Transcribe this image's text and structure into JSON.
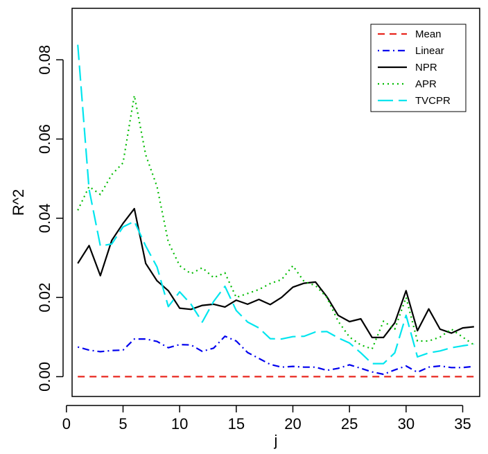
{
  "chart_data": {
    "type": "line",
    "title": "",
    "xlabel": "j",
    "ylabel": "R^2",
    "xlim": [
      0.5,
      36.5
    ],
    "ylim": [
      -0.005,
      0.093
    ],
    "x_ticks": [
      0,
      5,
      10,
      15,
      20,
      25,
      30,
      35
    ],
    "y_ticks": [
      0.0,
      0.02,
      0.04,
      0.06,
      0.08
    ],
    "y_tick_labels": [
      "0.00",
      "0.02",
      "0.04",
      "0.06",
      "0.08"
    ],
    "grid": false,
    "legend_position": "top-right",
    "x": [
      1,
      2,
      3,
      4,
      5,
      6,
      7,
      8,
      9,
      10,
      11,
      12,
      13,
      14,
      15,
      16,
      17,
      18,
      19,
      20,
      21,
      22,
      23,
      24,
      25,
      26,
      27,
      28,
      29,
      30,
      31,
      32,
      33,
      34,
      35,
      36
    ],
    "series": [
      {
        "name": "Mean",
        "color": "#e8261e",
        "dash": "dashed",
        "values": [
          0,
          0,
          0,
          0,
          0,
          0,
          0,
          0,
          0,
          0,
          0,
          0,
          0,
          0,
          0,
          0,
          0,
          0,
          0,
          0,
          0,
          0,
          0,
          0,
          0,
          0,
          0,
          0,
          0,
          0,
          0,
          0,
          0,
          0,
          0,
          0
        ]
      },
      {
        "name": "Linear",
        "color": "#0000ee",
        "dash": "dotdash",
        "values": [
          0.0075,
          0.0067,
          0.0063,
          0.0066,
          0.0067,
          0.0095,
          0.0095,
          0.0089,
          0.0073,
          0.0081,
          0.008,
          0.0064,
          0.0072,
          0.0102,
          0.009,
          0.0061,
          0.0046,
          0.0031,
          0.0024,
          0.0026,
          0.0024,
          0.0024,
          0.0016,
          0.0021,
          0.003,
          0.0021,
          0.0012,
          0.0006,
          0.0017,
          0.0027,
          0.0011,
          0.0024,
          0.0027,
          0.0023,
          0.0023,
          0.0026
        ]
      },
      {
        "name": "NPR",
        "color": "#000000",
        "dash": "solid",
        "values": [
          0.0286,
          0.0331,
          0.0255,
          0.0344,
          0.0387,
          0.0424,
          0.0286,
          0.0242,
          0.0217,
          0.0173,
          0.017,
          0.018,
          0.0183,
          0.0176,
          0.0193,
          0.0183,
          0.0195,
          0.0182,
          0.02,
          0.0226,
          0.0236,
          0.0239,
          0.0202,
          0.0155,
          0.0139,
          0.0146,
          0.0099,
          0.0099,
          0.0136,
          0.0217,
          0.0116,
          0.0171,
          0.012,
          0.011,
          0.0123,
          0.0126
        ]
      },
      {
        "name": "APR",
        "color": "#00bb00",
        "dash": "dotted",
        "values": [
          0.042,
          0.048,
          0.046,
          0.051,
          0.054,
          0.071,
          0.056,
          0.048,
          0.034,
          0.028,
          0.026,
          0.0275,
          0.025,
          0.0262,
          0.02,
          0.021,
          0.022,
          0.0235,
          0.0245,
          0.028,
          0.024,
          0.023,
          0.02,
          0.014,
          0.01,
          0.008,
          0.007,
          0.014,
          0.012,
          0.02,
          0.009,
          0.009,
          0.01,
          0.012,
          0.01,
          0.008
        ]
      },
      {
        "name": "TVCPR",
        "color": "#00e5ee",
        "dash": "longdash",
        "values": [
          0.0838,
          0.0473,
          0.033,
          0.0335,
          0.0378,
          0.0392,
          0.033,
          0.0277,
          0.0177,
          0.0214,
          0.0183,
          0.0138,
          0.019,
          0.0228,
          0.0167,
          0.0138,
          0.0123,
          0.0096,
          0.0095,
          0.0101,
          0.0102,
          0.0113,
          0.0114,
          0.0098,
          0.0085,
          0.006,
          0.0033,
          0.0033,
          0.006,
          0.0155,
          0.005,
          0.006,
          0.0065,
          0.0073,
          0.0078,
          0.0082
        ]
      }
    ]
  }
}
